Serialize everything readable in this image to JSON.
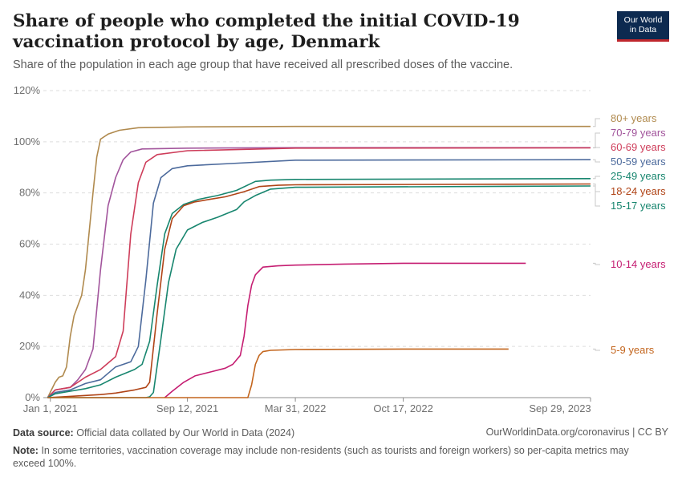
{
  "header": {
    "title": "Share of people who completed the initial COVID-19 vaccination protocol by age, Denmark",
    "subtitle": "Share of the population in each age group that have received all prescribed doses of the vaccine.",
    "logo_line1": "Our World",
    "logo_line2": "in Data"
  },
  "footer": {
    "source_label": "Data source:",
    "source_text": "Official data collated by Our World in Data (2024)",
    "license": "OurWorldinData.org/coronavirus | CC BY",
    "note_label": "Note:",
    "note_text": "In some territories, vaccination coverage may include non-residents (such as tourists and foreign workers) so per-capita metrics may exceed 100%."
  },
  "chart_data": {
    "type": "line",
    "title": "Share of people who completed the initial COVID-19 vaccination protocol by age, Denmark",
    "x_axis": {
      "type": "date",
      "range": [
        "2020-12-19",
        "2023-09-29"
      ],
      "tick_labels": [
        "Jan 1, 2021",
        "Sep 12, 2021",
        "Mar 31, 2022",
        "Oct 17, 2022",
        "Sep 29, 2023"
      ],
      "tick_dates": [
        "2021-01-01",
        "2021-09-12",
        "2022-03-31",
        "2022-10-17",
        "2023-09-29"
      ]
    },
    "y_axis": {
      "range": [
        0,
        120
      ],
      "ticks": [
        0,
        20,
        40,
        60,
        80,
        100,
        120
      ],
      "tick_labels": [
        "0%",
        "20%",
        "40%",
        "60%",
        "80%",
        "100%",
        "120%"
      ]
    },
    "grid": "horizontal dashed",
    "legend": "right (line-end labels)",
    "series": [
      {
        "name": "80+ years",
        "color": "#b08a4e",
        "points": [
          [
            "2020-12-27",
            0
          ],
          [
            "2021-01-10",
            6
          ],
          [
            "2021-01-17",
            8
          ],
          [
            "2021-01-24",
            8.5
          ],
          [
            "2021-01-31",
            12
          ],
          [
            "2021-02-07",
            24
          ],
          [
            "2021-02-14",
            32
          ],
          [
            "2021-02-28",
            40
          ],
          [
            "2021-03-07",
            50
          ],
          [
            "2021-03-21",
            80
          ],
          [
            "2021-03-28",
            94
          ],
          [
            "2021-04-04",
            101
          ],
          [
            "2021-04-18",
            103
          ],
          [
            "2021-05-09",
            104.5
          ],
          [
            "2021-06-13",
            105.5
          ],
          [
            "2021-09-12",
            105.8
          ],
          [
            "2022-03-31",
            106
          ],
          [
            "2023-09-29",
            106
          ]
        ]
      },
      {
        "name": "70-79 years",
        "color": "#a2559c",
        "points": [
          [
            "2020-12-27",
            0
          ],
          [
            "2021-01-10",
            3
          ],
          [
            "2021-02-07",
            4
          ],
          [
            "2021-02-21",
            7
          ],
          [
            "2021-03-07",
            11
          ],
          [
            "2021-03-21",
            19
          ],
          [
            "2021-04-04",
            50
          ],
          [
            "2021-04-18",
            75
          ],
          [
            "2021-05-02",
            86
          ],
          [
            "2021-05-16",
            93
          ],
          [
            "2021-05-30",
            96
          ],
          [
            "2021-06-20",
            97.2
          ],
          [
            "2021-09-12",
            97.5
          ],
          [
            "2022-03-31",
            97.7
          ],
          [
            "2023-09-29",
            97.7
          ]
        ]
      },
      {
        "name": "60-69 years",
        "color": "#ce3d5a",
        "points": [
          [
            "2020-12-27",
            0
          ],
          [
            "2021-01-10",
            3
          ],
          [
            "2021-02-07",
            4
          ],
          [
            "2021-03-07",
            8
          ],
          [
            "2021-04-04",
            11
          ],
          [
            "2021-05-02",
            16
          ],
          [
            "2021-05-16",
            26
          ],
          [
            "2021-05-30",
            64
          ],
          [
            "2021-06-13",
            84
          ],
          [
            "2021-06-27",
            92
          ],
          [
            "2021-07-18",
            95
          ],
          [
            "2021-09-12",
            96.5
          ],
          [
            "2022-03-31",
            97.5
          ],
          [
            "2023-09-29",
            97.6
          ]
        ]
      },
      {
        "name": "50-59 years",
        "color": "#4c6a9c",
        "points": [
          [
            "2020-12-27",
            0
          ],
          [
            "2021-01-10",
            2
          ],
          [
            "2021-02-07",
            3
          ],
          [
            "2021-03-07",
            5.5
          ],
          [
            "2021-04-04",
            7
          ],
          [
            "2021-05-02",
            12
          ],
          [
            "2021-05-30",
            14
          ],
          [
            "2021-06-13",
            20
          ],
          [
            "2021-06-27",
            46
          ],
          [
            "2021-07-11",
            76
          ],
          [
            "2021-07-25",
            86
          ],
          [
            "2021-08-15",
            89.5
          ],
          [
            "2021-09-12",
            90.6
          ],
          [
            "2021-12-01",
            91.5
          ],
          [
            "2022-03-31",
            92.8
          ],
          [
            "2023-09-29",
            93
          ]
        ]
      },
      {
        "name": "25-49 years",
        "color": "#18866f",
        "points": [
          [
            "2020-12-27",
            0
          ],
          [
            "2021-01-10",
            1.5
          ],
          [
            "2021-02-07",
            2.5
          ],
          [
            "2021-03-07",
            3.5
          ],
          [
            "2021-04-04",
            5
          ],
          [
            "2021-05-02",
            8
          ],
          [
            "2021-06-06",
            11
          ],
          [
            "2021-06-20",
            13
          ],
          [
            "2021-07-04",
            22
          ],
          [
            "2021-07-18",
            44
          ],
          [
            "2021-08-01",
            64
          ],
          [
            "2021-08-15",
            72
          ],
          [
            "2021-09-05",
            75.5
          ],
          [
            "2021-10-03",
            77.5
          ],
          [
            "2021-11-07",
            79
          ],
          [
            "2021-12-12",
            81
          ],
          [
            "2022-01-16",
            84.5
          ],
          [
            "2022-02-13",
            85
          ],
          [
            "2022-03-31",
            85.3
          ],
          [
            "2023-09-29",
            85.6
          ]
        ]
      },
      {
        "name": "18-24 years",
        "color": "#b04417",
        "points": [
          [
            "2020-12-27",
            0
          ],
          [
            "2021-02-07",
            0.5
          ],
          [
            "2021-04-04",
            1.2
          ],
          [
            "2021-05-02",
            1.8
          ],
          [
            "2021-06-06",
            3
          ],
          [
            "2021-06-27",
            4
          ],
          [
            "2021-07-04",
            6
          ],
          [
            "2021-07-18",
            33
          ],
          [
            "2021-08-01",
            58
          ],
          [
            "2021-08-15",
            70
          ],
          [
            "2021-09-05",
            75
          ],
          [
            "2021-09-26",
            76.5
          ],
          [
            "2021-10-24",
            77.5
          ],
          [
            "2021-11-21",
            78.5
          ],
          [
            "2021-12-26",
            80.5
          ],
          [
            "2022-01-23",
            82.5
          ],
          [
            "2022-02-27",
            83
          ],
          [
            "2022-03-31",
            83.2
          ],
          [
            "2023-09-29",
            83.5
          ]
        ]
      },
      {
        "name": "15-17 years",
        "color": "#18866f",
        "points": [
          [
            "2020-12-27",
            0
          ],
          [
            "2021-06-27",
            0
          ],
          [
            "2021-07-04",
            0.3
          ],
          [
            "2021-07-11",
            2
          ],
          [
            "2021-07-25",
            23
          ],
          [
            "2021-08-08",
            45
          ],
          [
            "2021-08-22",
            58
          ],
          [
            "2021-09-12",
            65.5
          ],
          [
            "2021-10-10",
            68.5
          ],
          [
            "2021-11-07",
            70.5
          ],
          [
            "2021-12-12",
            73.5
          ],
          [
            "2021-12-26",
            76.5
          ],
          [
            "2022-01-16",
            79
          ],
          [
            "2022-02-13",
            81.5
          ],
          [
            "2022-03-31",
            82.2
          ],
          [
            "2023-09-29",
            82.7
          ]
        ]
      },
      {
        "name": "10-14 years",
        "color": "#c51e72",
        "points": [
          [
            "2021-08-01",
            0
          ],
          [
            "2021-08-15",
            2.5
          ],
          [
            "2021-09-05",
            6
          ],
          [
            "2021-09-26",
            8.5
          ],
          [
            "2021-10-24",
            10
          ],
          [
            "2021-11-21",
            11.5
          ],
          [
            "2021-12-05",
            13
          ],
          [
            "2021-12-19",
            16.5
          ],
          [
            "2021-12-26",
            24
          ],
          [
            "2022-01-02",
            36
          ],
          [
            "2022-01-09",
            44
          ],
          [
            "2022-01-16",
            48
          ],
          [
            "2022-01-30",
            51
          ],
          [
            "2022-02-27",
            51.5
          ],
          [
            "2022-03-31",
            51.8
          ],
          [
            "2022-06-30",
            52.2
          ],
          [
            "2022-10-17",
            52.5
          ],
          [
            "2023-06-01",
            52.5
          ]
        ]
      },
      {
        "name": "5-9 years",
        "color": "#c3651d",
        "points": [
          [
            "2020-12-27",
            0
          ],
          [
            "2022-01-02",
            0
          ],
          [
            "2022-01-09",
            5
          ],
          [
            "2022-01-16",
            13
          ],
          [
            "2022-01-23",
            16.5
          ],
          [
            "2022-01-30",
            18
          ],
          [
            "2022-02-13",
            18.5
          ],
          [
            "2022-03-31",
            18.8
          ],
          [
            "2022-10-17",
            19
          ],
          [
            "2023-04-30",
            19
          ]
        ]
      }
    ]
  }
}
